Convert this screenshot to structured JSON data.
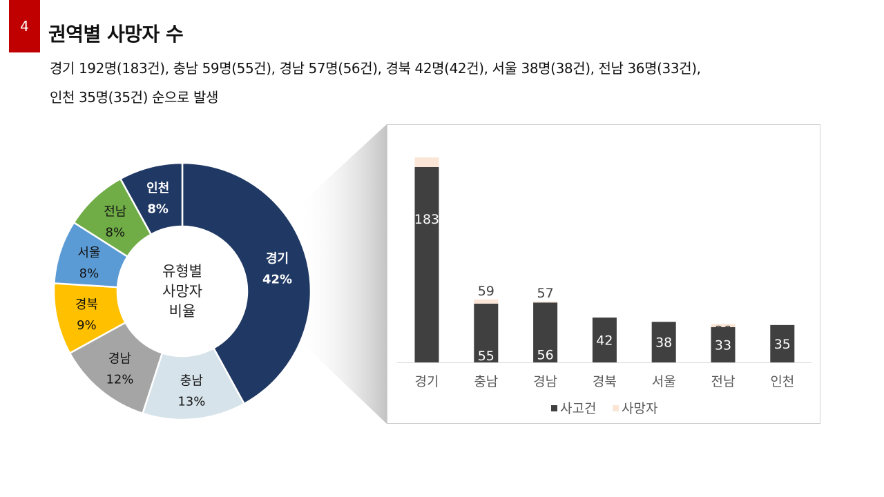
{
  "slide": {
    "page_number": "4",
    "title": "권역별 사망자 수",
    "summary_line1": "경기 192명(183건), 충남 59명(55건), 경남 57명(56건), 경북 42명(42건), 서울 38명(38건), 전남 36명(33건),",
    "summary_line2": "인천 35명(35건) 순으로 발생"
  },
  "chart_data": [
    {
      "type": "pie",
      "variant": "donut",
      "center_label": [
        "유형별",
        "사망자",
        "비율"
      ],
      "slices": [
        {
          "label": "경기",
          "percent_label": "42%",
          "value": 42,
          "color": "#1f3864",
          "text_color": "#ffffff"
        },
        {
          "label": "충남",
          "percent_label": "13%",
          "value": 13,
          "color": "#d6e3ea",
          "text_color": "#111111"
        },
        {
          "label": "경남",
          "percent_label": "12%",
          "value": 12,
          "color": "#a5a5a5",
          "text_color": "#111111"
        },
        {
          "label": "경북",
          "percent_label": "9%",
          "value": 9,
          "color": "#ffc000",
          "text_color": "#111111"
        },
        {
          "label": "서울",
          "percent_label": "8%",
          "value": 8,
          "color": "#5b9bd5",
          "text_color": "#111111"
        },
        {
          "label": "전남",
          "percent_label": "8%",
          "value": 8,
          "color": "#70ad47",
          "text_color": "#111111"
        },
        {
          "label": "인천",
          "percent_label": "8%",
          "value": 8,
          "color": "#203864",
          "text_color": "#ffffff"
        }
      ]
    },
    {
      "type": "bar",
      "stacked": false,
      "overlap": true,
      "categories": [
        "경기",
        "충남",
        "경남",
        "경북",
        "서울",
        "전남",
        "인천"
      ],
      "series": [
        {
          "name": "사망자",
          "values": [
            192,
            59,
            57,
            42,
            38,
            36,
            35
          ],
          "color": "#fbe5d6",
          "label_color": "#404040"
        },
        {
          "name": "사고건",
          "values": [
            183,
            55,
            56,
            42,
            38,
            33,
            35
          ],
          "color": "#404040",
          "label_color": "#ffffff"
        }
      ],
      "legend": {
        "position": "bottom",
        "order": [
          "사고건",
          "사망자"
        ]
      },
      "ylim": [
        0,
        200
      ],
      "grid": false
    }
  ]
}
